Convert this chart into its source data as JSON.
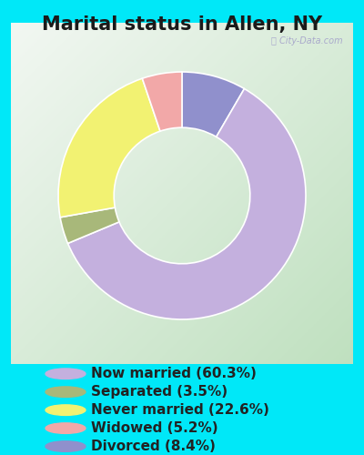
{
  "title": "Marital status in Allen, NY",
  "title_fontsize": 15,
  "bg_outer": "#00e8f8",
  "watermark": "City-Data.com",
  "slices": [
    {
      "label": "Now married (60.3%)",
      "value": 60.3,
      "color": "#c4b0de"
    },
    {
      "label": "Separated (3.5%)",
      "value": 3.5,
      "color": "#a8b87a"
    },
    {
      "label": "Never married (22.6%)",
      "value": 22.6,
      "color": "#f2f272"
    },
    {
      "label": "Widowed (5.2%)",
      "value": 5.2,
      "color": "#f2a8a8"
    },
    {
      "label": "Divorced (8.4%)",
      "value": 8.4,
      "color": "#9090cc"
    }
  ],
  "slice_order": [
    4,
    0,
    1,
    2,
    3
  ],
  "start_angle": 90,
  "donut_width": 0.45,
  "legend_fontsize": 11,
  "inner_bg_left": "#b8dbb8",
  "inner_bg_right": "#e8f0e8",
  "inner_bg_topleft": "#c2dcc2",
  "inner_bg_topright": "#eaf2f0"
}
